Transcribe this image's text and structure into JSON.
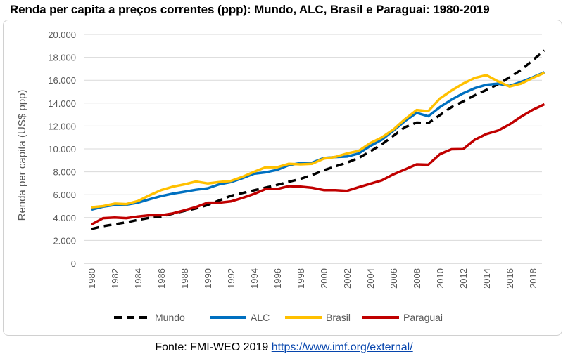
{
  "title": "Renda per capita a preços correntes (ppp): Mundo, ALC, Brasil e Paraguai: 1980-2019",
  "footer": {
    "source_label": "Fonte: FMI-WEO 2019",
    "link_text": "https://www.imf.org/external/"
  },
  "chart_data": {
    "type": "line",
    "title": "Renda per capita a preços correntes (ppp): Mundo, ALC, Brasil e Paraguai: 1980-2019",
    "xlabel": "",
    "ylabel": "Renda per capita (US$ ppp)",
    "ylim": [
      0,
      20000
    ],
    "yticks": [
      "0",
      "2.000",
      "4.000",
      "6.000",
      "8.000",
      "10.000",
      "12.000",
      "14.000",
      "16.000",
      "18.000",
      "20.000"
    ],
    "xtick_labels": [
      "1980",
      "1982",
      "1984",
      "1986",
      "1988",
      "1990",
      "1992",
      "1994",
      "1996",
      "1998",
      "2000",
      "2002",
      "2004",
      "2006",
      "2008",
      "2010",
      "2012",
      "2014",
      "2016",
      "2018"
    ],
    "grid": true,
    "legend_position": "bottom",
    "x": [
      1980,
      1981,
      1982,
      1983,
      1984,
      1985,
      1986,
      1987,
      1988,
      1989,
      1990,
      1991,
      1992,
      1993,
      1994,
      1995,
      1996,
      1997,
      1998,
      1999,
      2000,
      2001,
      2002,
      2003,
      2004,
      2005,
      2006,
      2007,
      2008,
      2009,
      2010,
      2011,
      2012,
      2013,
      2014,
      2015,
      2016,
      2017,
      2018,
      2019
    ],
    "series": [
      {
        "name": "Mundo",
        "color": "#000000",
        "dash": true,
        "values": [
          3000,
          3250,
          3420,
          3580,
          3800,
          3980,
          4100,
          4340,
          4580,
          4800,
          5100,
          5500,
          5900,
          6150,
          6380,
          6620,
          6860,
          7130,
          7380,
          7720,
          8130,
          8480,
          8800,
          9200,
          9780,
          10400,
          11150,
          11900,
          12300,
          12250,
          12950,
          13650,
          14150,
          14680,
          15150,
          15650,
          16250,
          16900,
          17750,
          18600
        ]
      },
      {
        "name": "ALC",
        "color": "#0070c0",
        "dash": false,
        "values": [
          4700,
          4950,
          5100,
          5130,
          5300,
          5600,
          5880,
          6090,
          6260,
          6430,
          6560,
          6900,
          7100,
          7440,
          7830,
          7950,
          8170,
          8580,
          8760,
          8800,
          9200,
          9290,
          9330,
          9600,
          10250,
          10800,
          11600,
          12450,
          13150,
          12850,
          13650,
          14300,
          14850,
          15300,
          15600,
          15700,
          15500,
          15850,
          16250,
          16700
        ]
      },
      {
        "name": "Brasil",
        "color": "#ffc000",
        "dash": false,
        "values": [
          4900,
          5000,
          5220,
          5180,
          5450,
          5950,
          6400,
          6700,
          6900,
          7150,
          6980,
          7100,
          7200,
          7560,
          8000,
          8400,
          8400,
          8700,
          8650,
          8700,
          9150,
          9300,
          9600,
          9820,
          10500,
          11000,
          11700,
          12600,
          13400,
          13300,
          14400,
          15100,
          15700,
          16200,
          16450,
          15900,
          15450,
          15700,
          16200,
          16650
        ]
      },
      {
        "name": "Paraguai",
        "color": "#c00000",
        "dash": false,
        "values": [
          3400,
          3950,
          4000,
          3950,
          4100,
          4200,
          4200,
          4370,
          4640,
          4920,
          5300,
          5300,
          5410,
          5720,
          6070,
          6500,
          6500,
          6750,
          6700,
          6600,
          6400,
          6400,
          6340,
          6650,
          6950,
          7250,
          7780,
          8200,
          8650,
          8620,
          9540,
          9970,
          9980,
          10800,
          11300,
          11600,
          12140,
          12820,
          13420,
          13900
        ]
      }
    ]
  }
}
